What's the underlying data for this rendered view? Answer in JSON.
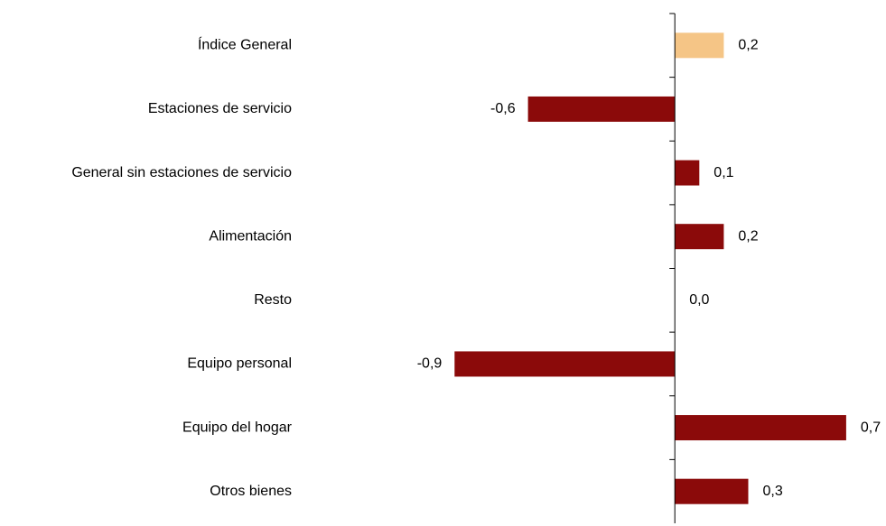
{
  "chart_data": {
    "type": "barh",
    "categories": [
      "Índice General",
      "Estaciones de servicio",
      "General sin estaciones de servicio",
      "Alimentación",
      "Resto",
      "Equipo personal",
      "Equipo del hogar",
      "Otros bienes"
    ],
    "values": [
      0.2,
      -0.6,
      0.1,
      0.2,
      0.0,
      -0.9,
      0.7,
      0.3
    ],
    "value_labels": [
      "0,2",
      "-0,6",
      "0,1",
      "0,2",
      "0,0",
      "-0,9",
      "0,7",
      "0,3"
    ],
    "colors": [
      "#f5c586",
      "#8b0a0a",
      "#8b0a0a",
      "#8b0a0a",
      "#8b0a0a",
      "#8b0a0a",
      "#8b0a0a",
      "#8b0a0a"
    ],
    "xlim": [
      -1.2,
      0.8
    ]
  }
}
